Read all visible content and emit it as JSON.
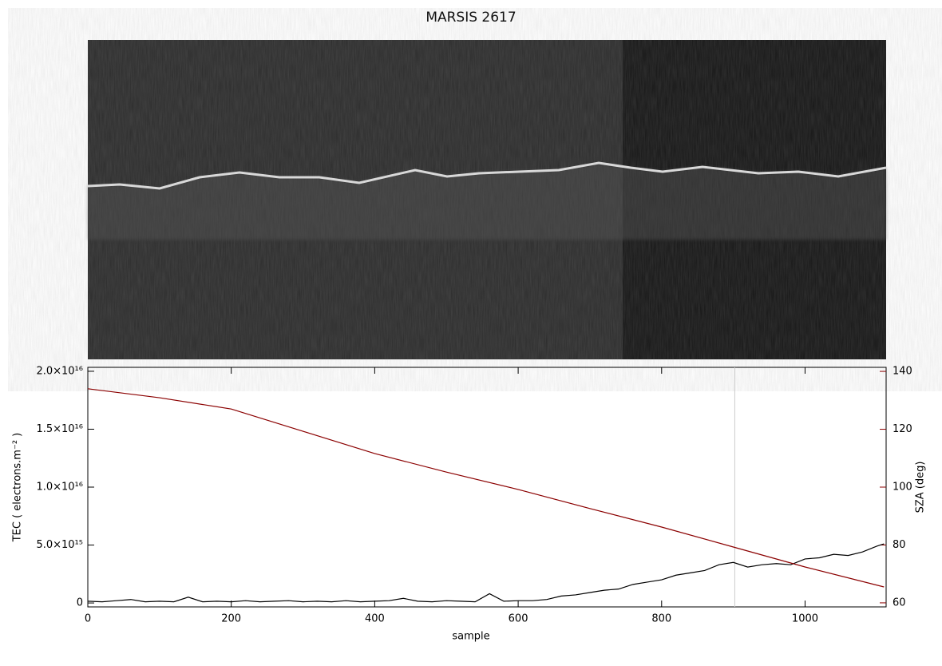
{
  "chart_data": {
    "type": "line",
    "title": "MARSIS 2617",
    "xlabel": "sample",
    "ylabel": "TEC ( electrons.m⁻² )",
    "y2label": "SZA (deg)",
    "xlim": [
      0,
      1113
    ],
    "xticks": [
      0,
      200,
      400,
      600,
      800,
      1000
    ],
    "ylim": [
      -340000000000000.0,
      2.034e+16
    ],
    "yticks": [
      0,
      {
        "value": 5000000000000000.0,
        "label": "5.0×10¹⁵"
      },
      {
        "value": 1e+16,
        "label": "1.0×10¹⁶"
      },
      {
        "value": 1.5e+16,
        "label": "1.5×10¹⁶"
      },
      {
        "value": 2e+16,
        "label": "2.0×10¹⁶"
      }
    ],
    "y2lim": [
      58.6,
      141.4
    ],
    "y2ticks": [
      60,
      80,
      100,
      120,
      140
    ],
    "y2color": "#8b0000",
    "vline": 902,
    "vline_color": "#cccccc",
    "series": [
      {
        "color": "#000000",
        "x": [
          0,
          20,
          40,
          60,
          80,
          100,
          120,
          140,
          160,
          180,
          200,
          220,
          240,
          260,
          280,
          300,
          320,
          340,
          360,
          380,
          400,
          420,
          440,
          460,
          480,
          500,
          520,
          540,
          560,
          580,
          600,
          620,
          640,
          660,
          680,
          700,
          720,
          740,
          760,
          780,
          800,
          820,
          840,
          860,
          880,
          900,
          920,
          940,
          960,
          980,
          1000,
          1020,
          1040,
          1060,
          1080,
          1100,
          1110
        ],
        "values": [
          150000000000000.0,
          100000000000000.0,
          200000000000000.0,
          300000000000000.0,
          100000000000000.0,
          150000000000000.0,
          100000000000000.0,
          500000000000000.0,
          100000000000000.0,
          150000000000000.0,
          100000000000000.0,
          200000000000000.0,
          100000000000000.0,
          150000000000000.0,
          200000000000000.0,
          100000000000000.0,
          150000000000000.0,
          100000000000000.0,
          200000000000000.0,
          100000000000000.0,
          150000000000000.0,
          200000000000000.0,
          400000000000000.0,
          150000000000000.0,
          100000000000000.0,
          200000000000000.0,
          150000000000000.0,
          100000000000000.0,
          800000000000000.0,
          150000000000000.0,
          200000000000000.0,
          200000000000000.0,
          300000000000000.0,
          600000000000000.0,
          700000000000000.0,
          900000000000000.0,
          1100000000000000.0,
          1200000000000000.0,
          1600000000000000.0,
          1800000000000000.0,
          2000000000000000.0,
          2400000000000000.0,
          2600000000000000.0,
          2800000000000000.0,
          3300000000000000.0,
          3500000000000000.0,
          3100000000000000.0,
          3300000000000000.0,
          3400000000000000.0,
          3300000000000000.0,
          3800000000000000.0,
          3900000000000000.0,
          4200000000000000.0,
          4100000000000000.0,
          4400000000000000.0,
          4900000000000000.0,
          5100000000000000.0
        ]
      },
      {
        "color": "#8b0000",
        "axis": "y2",
        "x": [
          0,
          100,
          200,
          300,
          400,
          500,
          600,
          700,
          800,
          900,
          1000,
          1110
        ],
        "values": [
          134,
          130.9,
          127,
          119.3,
          111.6,
          105.2,
          99.2,
          92.6,
          86.2,
          79.3,
          72.4,
          65.5
        ]
      }
    ]
  }
}
